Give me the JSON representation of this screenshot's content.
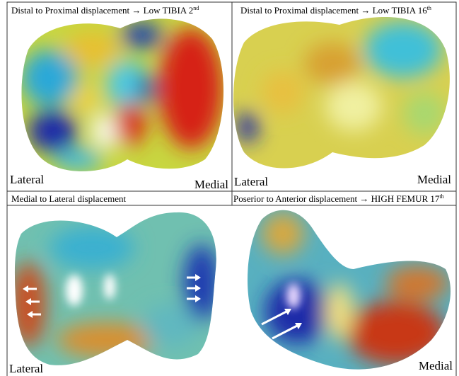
{
  "panels": [
    {
      "title": "Distal to Proximal displacement → Low TIBIA 2",
      "title_sup": "nd",
      "left_label": "Lateral",
      "right_label": "Medial"
    },
    {
      "title": "Distal to Proximal displacement → Low TIBIA 16",
      "title_sup": "th",
      "left_label": "Lateral",
      "right_label": "Medial"
    },
    {
      "title": "Medial to Lateral displacement",
      "left_label": "Lateral"
    },
    {
      "title": "Poserior to Anterior displacement → HIGH FEMUR 17",
      "title_sup": "th",
      "right_label": "Medial"
    }
  ]
}
